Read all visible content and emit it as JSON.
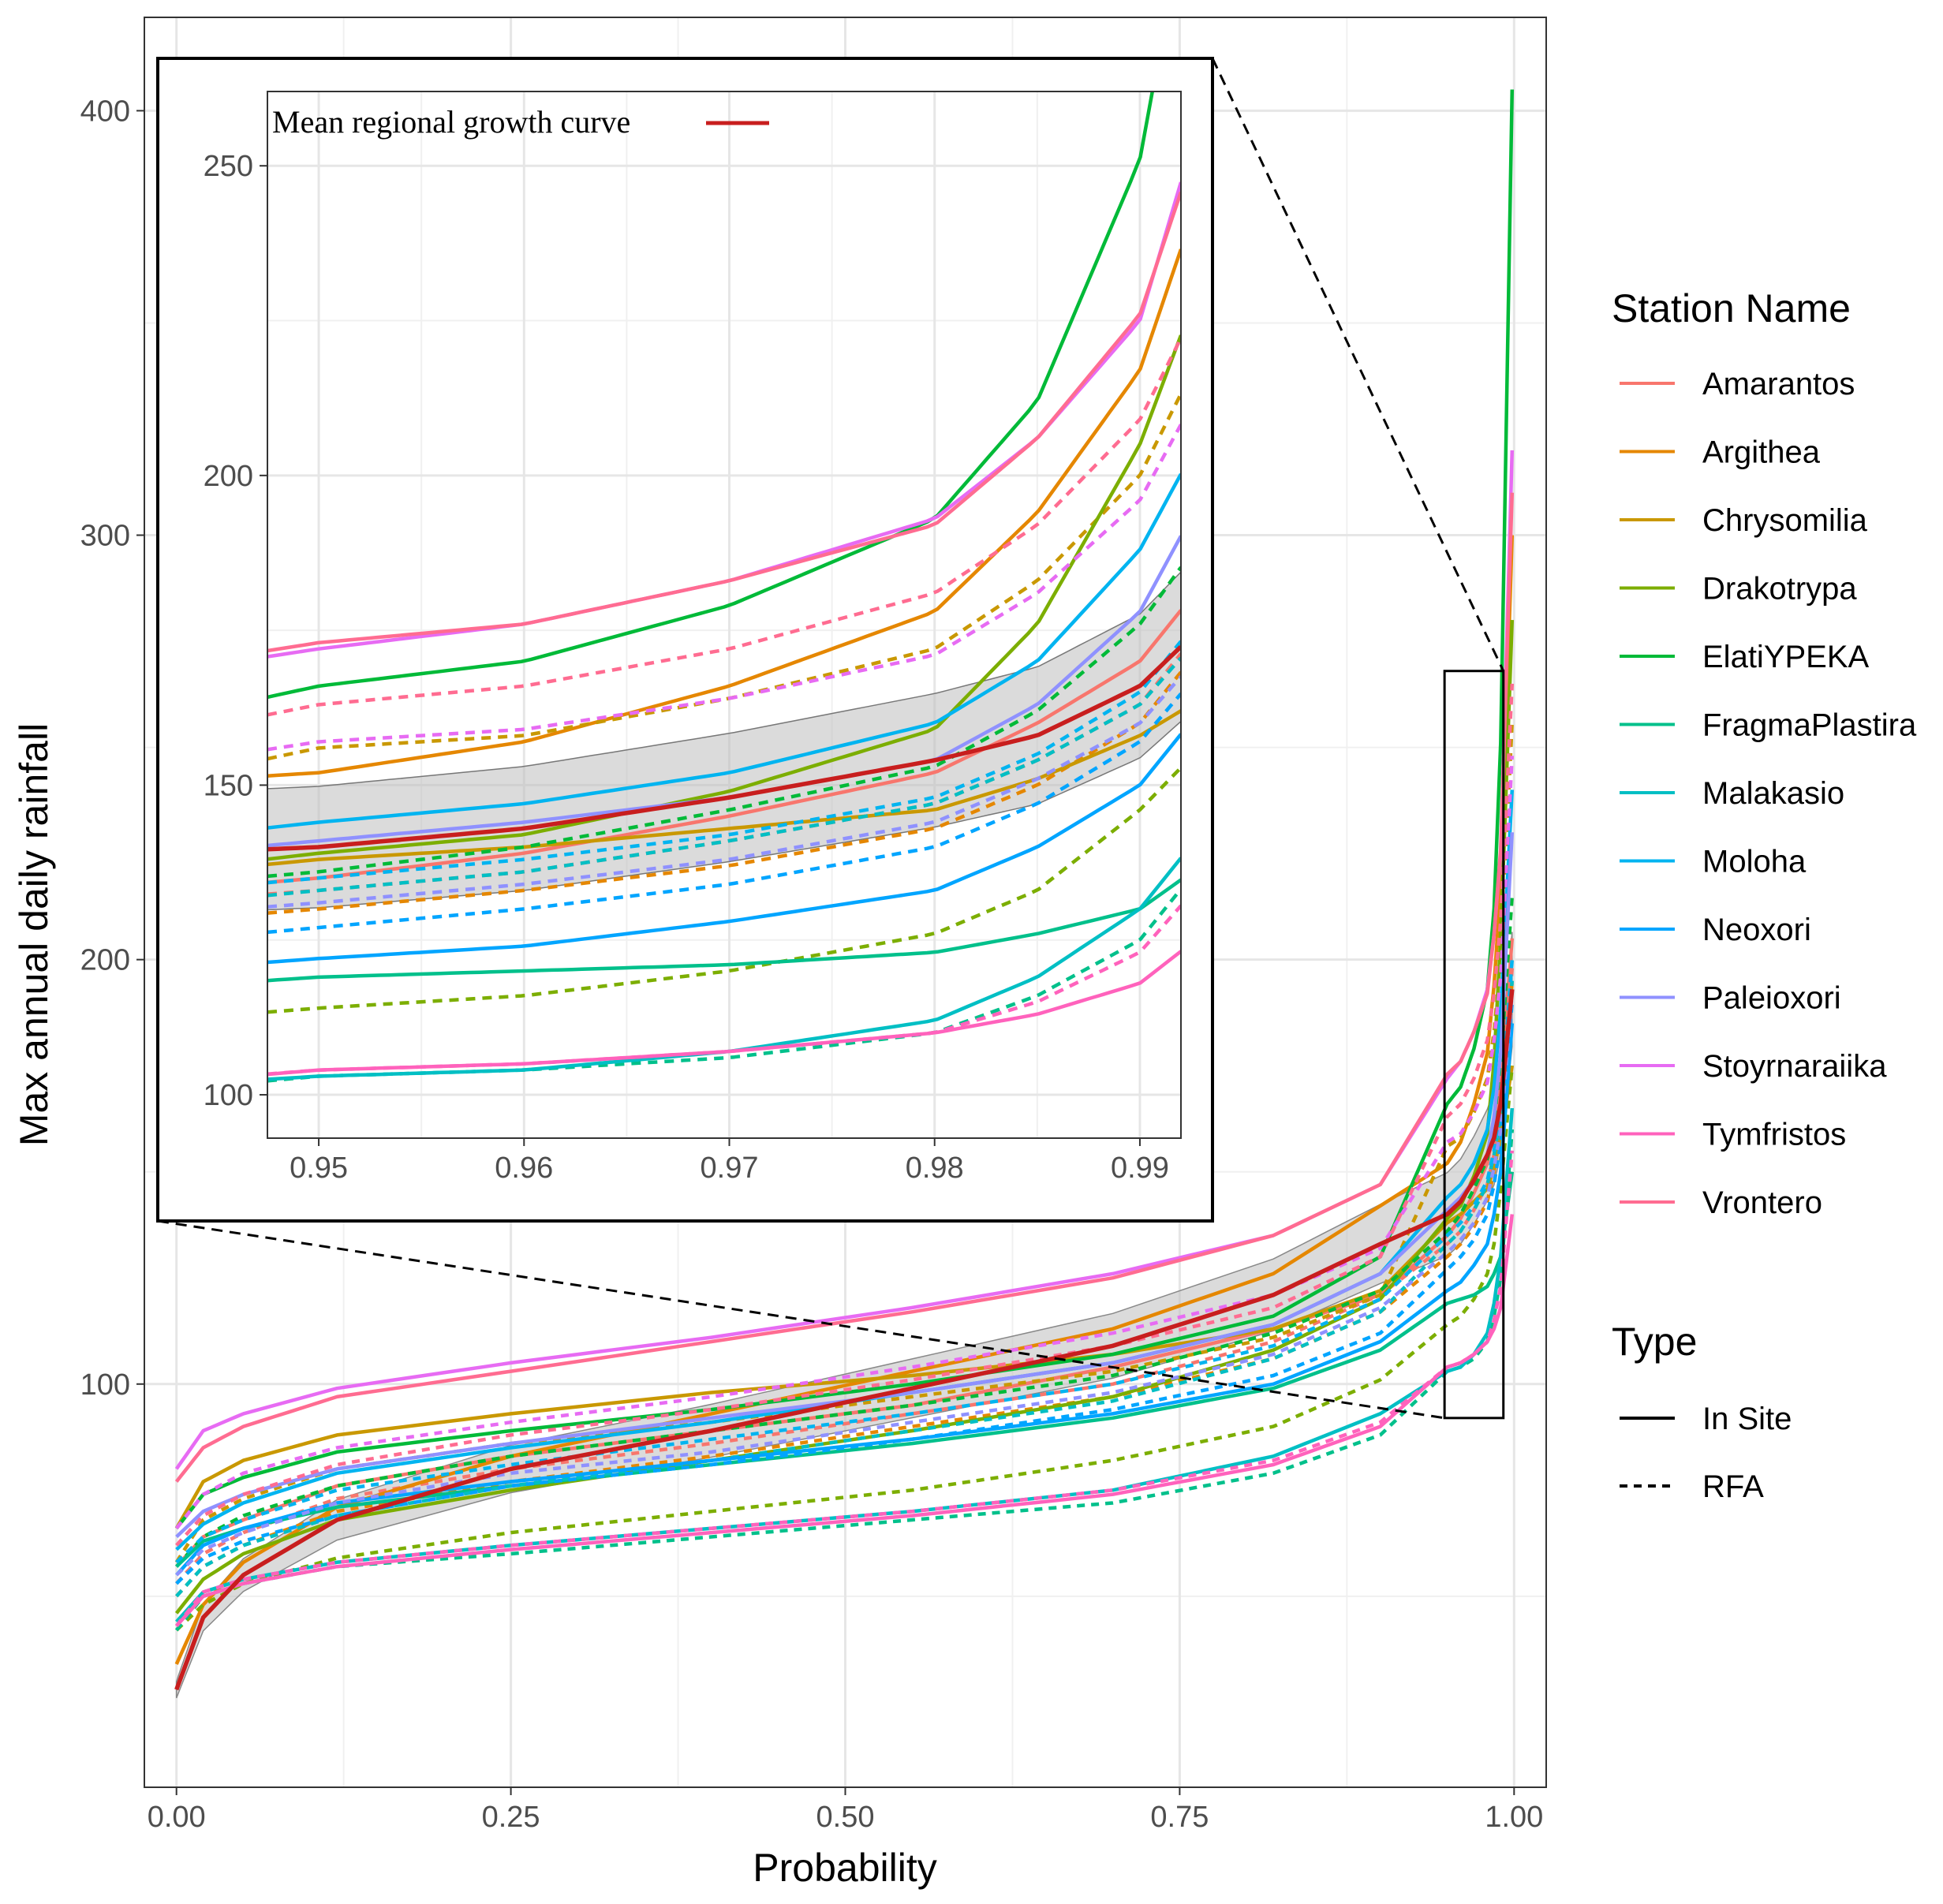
{
  "chart_data": [
    {
      "id": "main",
      "type": "line",
      "xlabel": "Probability",
      "ylabel": "Max annual daily rainfall",
      "xlim": [
        -0.024,
        1.024
      ],
      "ylim": [
        5,
        422
      ],
      "xticks": [
        0.0,
        0.25,
        0.5,
        0.75,
        1.0
      ],
      "xtick_labels": [
        "0.00",
        "0.25",
        "0.50",
        "0.75",
        "1.00"
      ],
      "yticks": [
        100,
        200,
        300,
        400
      ],
      "ytick_labels": [
        "100",
        "200",
        "300",
        "400"
      ],
      "grid": true,
      "zoom_box": {
        "x": [
          0.948,
          0.992
        ],
        "y": [
          92,
          268
        ]
      },
      "regional_band": {
        "lower_factor": 0.93,
        "upper_factor": 1.07
      }
    },
    {
      "id": "inset",
      "type": "line",
      "xlim": [
        0.9475,
        0.992
      ],
      "ylim": [
        93,
        262
      ],
      "xticks": [
        0.95,
        0.96,
        0.97,
        0.98,
        0.99
      ],
      "xtick_labels": [
        "0.95",
        "0.96",
        "0.97",
        "0.98",
        "0.99"
      ],
      "yticks": [
        100,
        150,
        200,
        250
      ],
      "ytick_labels": [
        "100",
        "150",
        "200",
        "250"
      ],
      "annotation": "Mean regional growth curve",
      "annotation_color": "#c81e1e"
    }
  ],
  "legend": {
    "station_title": "Station Name",
    "stations": [
      {
        "name": "Amarantos",
        "color": "#f8766d"
      },
      {
        "name": "Argithea",
        "color": "#e58700"
      },
      {
        "name": "Chrysomilia",
        "color": "#c99800"
      },
      {
        "name": "Drakotrypa",
        "color": "#7cae00"
      },
      {
        "name": "ElatiYPEKA",
        "color": "#00ba38"
      },
      {
        "name": "FragmaPlastira",
        "color": "#00c08b"
      },
      {
        "name": "Malakasio",
        "color": "#00bfc4"
      },
      {
        "name": "Moloha",
        "color": "#00b4f0"
      },
      {
        "name": "Neoxori",
        "color": "#00a5ff"
      },
      {
        "name": "Paleioxori",
        "color": "#8f91ff"
      },
      {
        "name": "Stoyrnaraiika",
        "color": "#e76bf3"
      },
      {
        "name": "Tymfristos",
        "color": "#ff62bc"
      },
      {
        "name": "Vrontero",
        "color": "#ff6c91"
      }
    ],
    "type_title": "Type",
    "types": [
      {
        "name": "In Site",
        "dash": "solid"
      },
      {
        "name": "RFA",
        "dash": "dashed"
      }
    ]
  },
  "curves": {
    "regional": {
      "name": "Mean regional growth curve",
      "color": "#c81e1e",
      "q": [
        28,
        45,
        55,
        68,
        80,
        89,
        99,
        109,
        121,
        133,
        140,
        143,
        148,
        154,
        158,
        166,
        193
      ]
    },
    "band_color": "#bebebe",
    "series": [
      {
        "station": "Amarantos",
        "type": "In Site",
        "color": "#f8766d",
        "q": [
          57,
          64,
          68,
          76,
          83,
          89,
          95,
          104,
          113,
          121,
          135,
          139,
          145,
          152,
          160,
          170,
          205
        ]
      },
      {
        "station": "Amarantos",
        "type": "RFA",
        "color": "#f8766d",
        "q": [
          53,
          60,
          65,
          73,
          80,
          86,
          93,
          100,
          110,
          121,
          133,
          136,
          141,
          147,
          154,
          163,
          198
        ]
      },
      {
        "station": "Argithea",
        "type": "In Site",
        "color": "#e58700",
        "q": [
          34,
          48,
          58,
          71,
          83,
          93,
          103,
          113,
          126,
          142,
          152,
          157,
          166,
          178,
          194,
          217,
          300
        ]
      },
      {
        "station": "Argithea",
        "type": "RFA",
        "color": "#e58700",
        "q": [
          50,
          57,
          62,
          70,
          77,
          83,
          90,
          97,
          106,
          117,
          130,
          133,
          137,
          143,
          150,
          160,
          195
        ]
      },
      {
        "station": "Chrysomilia",
        "type": "In Site",
        "color": "#c99800",
        "q": [
          66,
          77,
          82,
          88,
          93,
          98,
          102,
          107,
          113,
          122,
          138,
          140,
          143,
          146,
          151,
          158,
          175
        ]
      },
      {
        "station": "Chrysomilia",
        "type": "RFA",
        "color": "#c99800",
        "q": [
          58,
          68,
          73,
          80,
          86,
          91,
          97,
          103,
          111,
          121,
          156,
          158,
          164,
          172,
          183,
          200,
          256
        ]
      },
      {
        "station": "Drakotrypa",
        "type": "In Site",
        "color": "#7cae00",
        "q": [
          46,
          54,
          60,
          68,
          75,
          82,
          89,
          97,
          108,
          120,
          139,
          142,
          149,
          159,
          176,
          205,
          280
        ]
      },
      {
        "station": "Drakotrypa",
        "type": "RFA",
        "color": "#7cae00",
        "q": [
          42,
          48,
          53,
          59,
          65,
          70,
          75,
          82,
          90,
          101,
          114,
          116,
          120,
          126,
          133,
          146,
          175
        ]
      },
      {
        "station": "ElatiYPEKA",
        "type": "In Site",
        "color": "#00ba38",
        "q": [
          66,
          74,
          78,
          84,
          89,
          94,
          100,
          107,
          116,
          130,
          166,
          170,
          179,
          193,
          212,
          251,
          405
        ]
      },
      {
        "station": "ElatiYPEKA",
        "type": "RFA",
        "color": "#00ba38",
        "q": [
          57,
          64,
          69,
          76,
          83,
          89,
          95,
          102,
          112,
          122,
          136,
          140,
          146,
          153,
          162,
          176,
          215
        ]
      },
      {
        "station": "FragmaPlastira",
        "type": "In Site",
        "color": "#00c08b",
        "q": [
          57,
          63,
          66,
          71,
          76,
          81,
          86,
          92,
          99,
          108,
          119,
          120,
          121,
          123,
          126,
          130,
          150
        ]
      },
      {
        "station": "FragmaPlastira",
        "type": "RFA",
        "color": "#00c08b",
        "q": [
          42,
          50,
          53,
          57,
          60,
          64,
          68,
          72,
          79,
          88,
          103,
          104,
          106,
          110,
          116,
          125,
          160
        ]
      },
      {
        "station": "Malakasio",
        "type": "In Site",
        "color": "#00bfc4",
        "q": [
          44,
          51,
          54,
          58,
          62,
          66,
          70,
          75,
          83,
          93,
          103,
          104,
          107,
          112,
          119,
          130,
          165
        ]
      },
      {
        "station": "Malakasio",
        "type": "RFA",
        "color": "#00bfc4",
        "q": [
          50,
          57,
          62,
          69,
          76,
          82,
          89,
          96,
          106,
          117,
          133,
          136,
          141,
          147,
          154,
          163,
          195
        ]
      },
      {
        "station": "Moloha",
        "type": "In Site",
        "color": "#00b4f0",
        "q": [
          61,
          67,
          72,
          79,
          85,
          91,
          98,
          105,
          114,
          126,
          144,
          147,
          152,
          160,
          170,
          188,
          240
        ]
      },
      {
        "station": "Moloha",
        "type": "RFA",
        "color": "#00b4f0",
        "q": [
          58,
          64,
          68,
          75,
          81,
          87,
          93,
          100,
          109,
          120,
          135,
          138,
          142,
          148,
          155,
          165,
          200
        ]
      },
      {
        "station": "Neoxori",
        "type": "In Site",
        "color": "#00a5ff",
        "q": [
          55,
          62,
          66,
          72,
          77,
          82,
          87,
          93,
          100,
          110,
          122,
          124,
          128,
          133,
          140,
          150,
          185
        ]
      },
      {
        "station": "Neoxori",
        "type": "RFA",
        "color": "#00a5ff",
        "q": [
          53,
          59,
          63,
          69,
          76,
          81,
          87,
          94,
          102,
          112,
          127,
          130,
          134,
          140,
          147,
          157,
          190
        ]
      },
      {
        "station": "Paleioxori",
        "type": "In Site",
        "color": "#8f91ff",
        "q": [
          64,
          70,
          74,
          80,
          86,
          92,
          98,
          105,
          114,
          126,
          141,
          144,
          148,
          154,
          163,
          178,
          230
        ]
      },
      {
        "station": "Paleioxori",
        "type": "RFA",
        "color": "#8f91ff",
        "q": [
          55,
          61,
          65,
          72,
          79,
          84,
          91,
          98,
          107,
          118,
          131,
          134,
          138,
          144,
          151,
          160,
          192
        ]
      },
      {
        "station": "Stoyrnaraiika",
        "type": "In Site",
        "color": "#e76bf3",
        "q": [
          80,
          89,
          93,
          99,
          105,
          111,
          118,
          126,
          135,
          147,
          172,
          176,
          183,
          193,
          206,
          225,
          320
        ]
      },
      {
        "station": "Stoyrnaraiika",
        "type": "RFA",
        "color": "#e76bf3",
        "q": [
          66,
          74,
          79,
          85,
          91,
          97,
          104,
          112,
          121,
          132,
          157,
          159,
          164,
          171,
          181,
          196,
          248
        ]
      },
      {
        "station": "Tymfristos",
        "type": "In Site",
        "color": "#ff62bc",
        "q": [
          43,
          50,
          53,
          57,
          61,
          65,
          69,
          74,
          81,
          90,
          104,
          105,
          107,
          110,
          113,
          118,
          140
        ]
      },
      {
        "station": "Tymfristos",
        "type": "RFA",
        "color": "#ff62bc",
        "q": [
          43,
          51,
          54,
          58,
          62,
          66,
          70,
          75,
          82,
          91,
          104,
          105,
          107,
          110,
          115,
          123,
          155
        ]
      },
      {
        "station": "Vrontero",
        "type": "In Site",
        "color": "#ff6c91",
        "q": [
          77,
          85,
          90,
          97,
          103,
          110,
          117,
          125,
          135,
          147,
          173,
          176,
          183,
          192,
          206,
          226,
          310
        ]
      },
      {
        "station": "Vrontero",
        "type": "RFA",
        "color": "#ff6c91",
        "q": [
          62,
          69,
          74,
          81,
          88,
          94,
          101,
          109,
          118,
          130,
          163,
          166,
          172,
          181,
          192,
          209,
          265
        ]
      }
    ],
    "probabilities": [
      0.0,
      0.02,
      0.05,
      0.12,
      0.25,
      0.4,
      0.55,
      0.7,
      0.82,
      0.9,
      0.95,
      0.96,
      0.97,
      0.98,
      0.985,
      0.99,
      0.9985
    ]
  }
}
